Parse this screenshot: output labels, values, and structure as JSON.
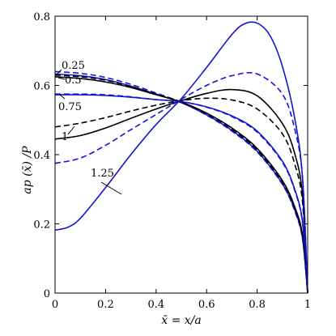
{
  "chart_data": {
    "type": "line",
    "xlabel": "x̄ = x/a",
    "ylabel": "ap (x̄) /P",
    "xlim": [
      0,
      1
    ],
    "ylim": [
      0,
      0.8
    ],
    "xticks": [
      0,
      0.2,
      0.4,
      0.6,
      0.8,
      1
    ],
    "yticks": [
      0,
      0.2,
      0.4,
      0.6,
      0.8
    ],
    "xtick_labels": [
      "0",
      "0.2",
      "0.4",
      "0.6",
      "0.8",
      "1"
    ],
    "ytick_labels": [
      "0",
      "0.2",
      "0.4",
      "0.6",
      "0.8"
    ],
    "grid": false,
    "annotations": [
      "0.25",
      "0.5",
      "0.75",
      "1",
      "1.25"
    ],
    "series": [
      {
        "label": "0.25",
        "color": "#1414d2",
        "dash": "dashed",
        "points": [
          [
            0,
            0.64
          ],
          [
            0.1,
            0.635
          ],
          [
            0.2,
            0.623
          ],
          [
            0.3,
            0.603
          ],
          [
            0.4,
            0.578
          ],
          [
            0.5,
            0.551
          ],
          [
            0.6,
            0.514
          ],
          [
            0.7,
            0.468
          ],
          [
            0.8,
            0.408
          ],
          [
            0.9,
            0.314
          ],
          [
            0.95,
            0.235
          ],
          [
            0.98,
            0.155
          ],
          [
            1,
            0
          ]
        ]
      },
      {
        "label": "0.25",
        "color": "#1414d2",
        "dash": "solid",
        "points": [
          [
            0,
            0.633
          ],
          [
            0.1,
            0.628
          ],
          [
            0.2,
            0.617
          ],
          [
            0.3,
            0.598
          ],
          [
            0.4,
            0.575
          ],
          [
            0.5,
            0.55
          ],
          [
            0.6,
            0.515
          ],
          [
            0.7,
            0.47
          ],
          [
            0.8,
            0.41
          ],
          [
            0.9,
            0.316
          ],
          [
            0.95,
            0.238
          ],
          [
            0.98,
            0.158
          ],
          [
            1,
            0
          ]
        ]
      },
      {
        "label": "0.5",
        "color": "#000000",
        "dash": "dashed",
        "points": [
          [
            0,
            0.63
          ],
          [
            0.1,
            0.625
          ],
          [
            0.2,
            0.615
          ],
          [
            0.3,
            0.597
          ],
          [
            0.4,
            0.575
          ],
          [
            0.5,
            0.552
          ],
          [
            0.6,
            0.518
          ],
          [
            0.7,
            0.474
          ],
          [
            0.8,
            0.414
          ],
          [
            0.9,
            0.321
          ],
          [
            0.95,
            0.243
          ],
          [
            0.98,
            0.162
          ],
          [
            1,
            0
          ]
        ]
      },
      {
        "label": "0.5",
        "color": "#000000",
        "dash": "solid",
        "points": [
          [
            0,
            0.625
          ],
          [
            0.1,
            0.62
          ],
          [
            0.2,
            0.61
          ],
          [
            0.3,
            0.594
          ],
          [
            0.4,
            0.573
          ],
          [
            0.5,
            0.552
          ],
          [
            0.6,
            0.52
          ],
          [
            0.7,
            0.477
          ],
          [
            0.8,
            0.418
          ],
          [
            0.9,
            0.325
          ],
          [
            0.95,
            0.247
          ],
          [
            0.98,
            0.165
          ],
          [
            1,
            0
          ]
        ]
      },
      {
        "label": "0.75",
        "color": "#1414d2",
        "dash": "dashed",
        "points": [
          [
            0,
            0.575
          ],
          [
            0.1,
            0.575
          ],
          [
            0.2,
            0.573
          ],
          [
            0.3,
            0.567
          ],
          [
            0.4,
            0.559
          ],
          [
            0.5,
            0.553
          ],
          [
            0.6,
            0.537
          ],
          [
            0.7,
            0.51
          ],
          [
            0.8,
            0.465
          ],
          [
            0.9,
            0.378
          ],
          [
            0.95,
            0.294
          ],
          [
            0.98,
            0.2
          ],
          [
            1,
            0
          ]
        ]
      },
      {
        "label": "0.75",
        "color": "#1414d2",
        "dash": "solid",
        "points": [
          [
            0,
            0.573
          ],
          [
            0.1,
            0.573
          ],
          [
            0.2,
            0.571
          ],
          [
            0.3,
            0.566
          ],
          [
            0.4,
            0.559
          ],
          [
            0.5,
            0.553
          ],
          [
            0.6,
            0.538
          ],
          [
            0.7,
            0.512
          ],
          [
            0.8,
            0.468
          ],
          [
            0.9,
            0.381
          ],
          [
            0.95,
            0.297
          ],
          [
            0.98,
            0.203
          ],
          [
            1,
            0
          ]
        ]
      },
      {
        "label": "1",
        "color": "#000000",
        "dash": "dashed",
        "points": [
          [
            0,
            0.48
          ],
          [
            0.1,
            0.491
          ],
          [
            0.2,
            0.507
          ],
          [
            0.3,
            0.526
          ],
          [
            0.4,
            0.543
          ],
          [
            0.5,
            0.556
          ],
          [
            0.6,
            0.563
          ],
          [
            0.7,
            0.558
          ],
          [
            0.8,
            0.532
          ],
          [
            0.9,
            0.46
          ],
          [
            0.95,
            0.37
          ],
          [
            0.98,
            0.26
          ],
          [
            1,
            0
          ]
        ]
      },
      {
        "label": "1",
        "color": "#000000",
        "dash": "solid",
        "points": [
          [
            0,
            0.445
          ],
          [
            0.1,
            0.455
          ],
          [
            0.2,
            0.477
          ],
          [
            0.3,
            0.505
          ],
          [
            0.4,
            0.532
          ],
          [
            0.5,
            0.556
          ],
          [
            0.6,
            0.577
          ],
          [
            0.7,
            0.588
          ],
          [
            0.8,
            0.57
          ],
          [
            0.9,
            0.49
          ],
          [
            0.95,
            0.4
          ],
          [
            0.98,
            0.28
          ],
          [
            1,
            0
          ]
        ]
      },
      {
        "label": "1.25",
        "color": "#1414d2",
        "dash": "dashed",
        "points": [
          [
            0,
            0.375
          ],
          [
            0.1,
            0.39
          ],
          [
            0.2,
            0.427
          ],
          [
            0.3,
            0.472
          ],
          [
            0.4,
            0.516
          ],
          [
            0.5,
            0.56
          ],
          [
            0.6,
            0.6
          ],
          [
            0.7,
            0.628
          ],
          [
            0.8,
            0.633
          ],
          [
            0.9,
            0.575
          ],
          [
            0.95,
            0.47
          ],
          [
            0.98,
            0.33
          ],
          [
            1,
            0
          ]
        ]
      },
      {
        "label": "1.25",
        "color": "#1414d2",
        "dash": "solid",
        "points": [
          [
            0,
            0.182
          ],
          [
            0.05,
            0.19
          ],
          [
            0.1,
            0.216
          ],
          [
            0.2,
            0.305
          ],
          [
            0.3,
            0.4
          ],
          [
            0.4,
            0.487
          ],
          [
            0.5,
            0.562
          ],
          [
            0.6,
            0.652
          ],
          [
            0.7,
            0.747
          ],
          [
            0.75,
            0.778
          ],
          [
            0.8,
            0.78
          ],
          [
            0.85,
            0.745
          ],
          [
            0.9,
            0.655
          ],
          [
            0.95,
            0.5
          ],
          [
            0.98,
            0.33
          ],
          [
            1,
            0
          ]
        ]
      }
    ]
  }
}
